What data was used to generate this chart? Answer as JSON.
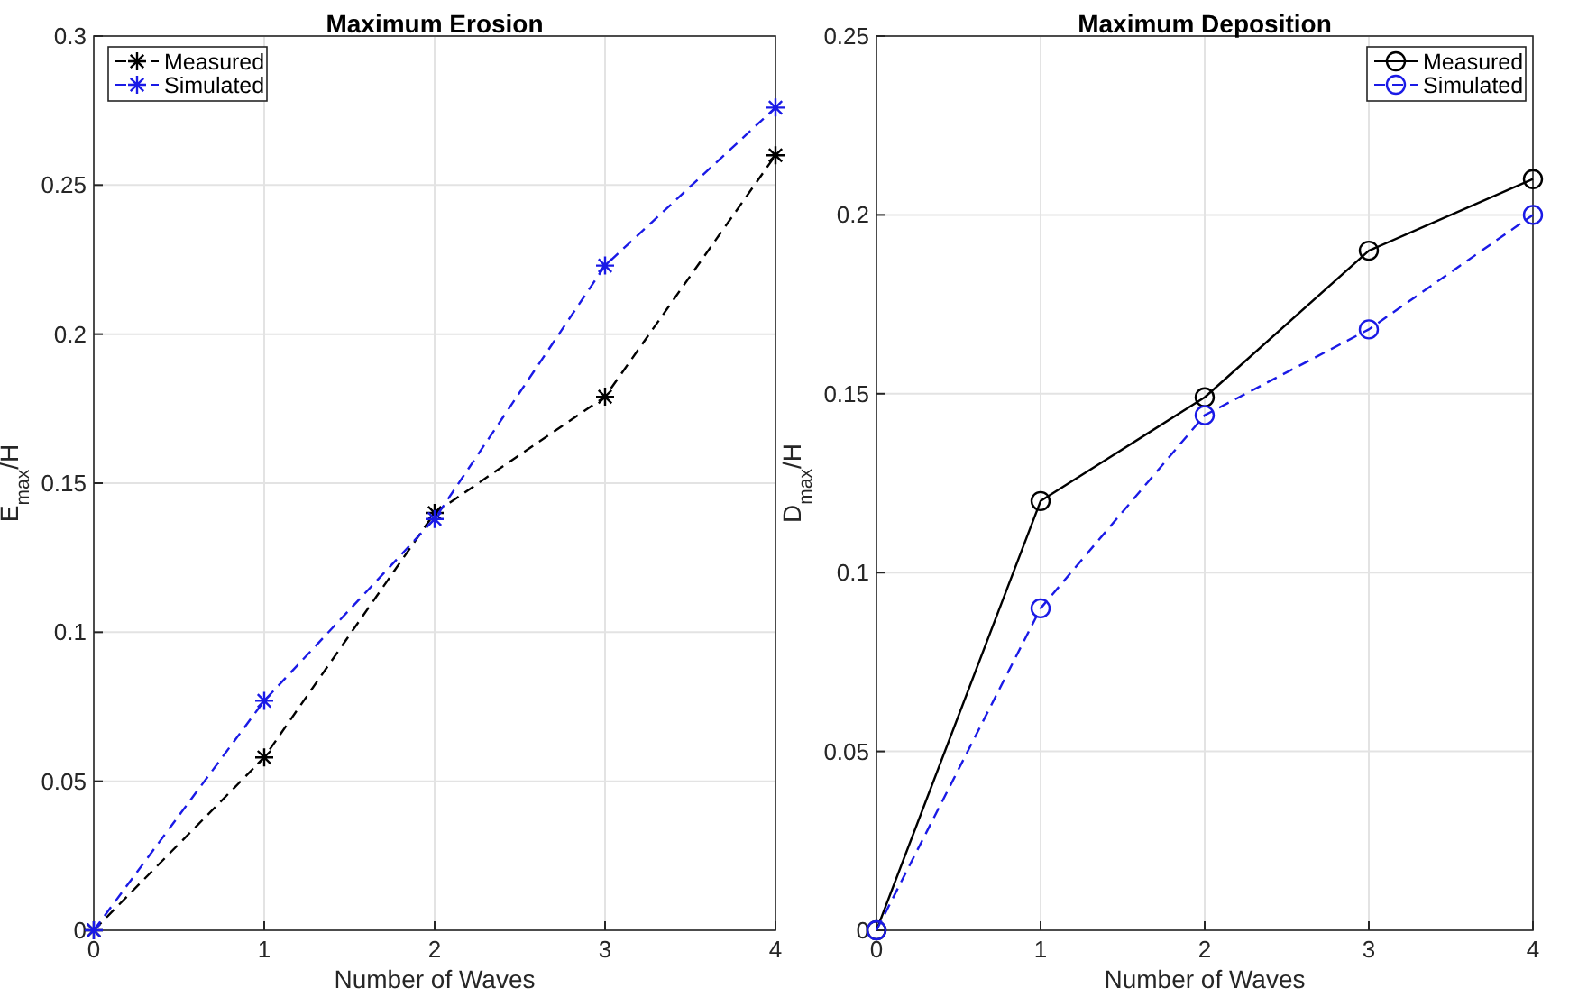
{
  "chart_data": [
    {
      "type": "line",
      "title": "Maximum Erosion",
      "xlabel": "Number of Waves",
      "ylabel": "E$_{max}$/H",
      "x": [
        0,
        1,
        2,
        3,
        4
      ],
      "xlim": [
        0,
        4
      ],
      "xticks": [
        0,
        1,
        2,
        3,
        4
      ],
      "ylim": [
        0,
        0.3
      ],
      "yticks": [
        0,
        0.05,
        0.1,
        0.15,
        0.2,
        0.25,
        0.3
      ],
      "grid": true,
      "legend": "top left",
      "series": [
        {
          "name": "Measured",
          "color": "#000000",
          "marker": "cross",
          "line_style": "dashed",
          "values": [
            0,
            0.058,
            0.14,
            0.179,
            0.26
          ]
        },
        {
          "name": "Simulated",
          "color": "#1a1ae6",
          "marker": "cross",
          "line_style": "dashed",
          "values": [
            0,
            0.077,
            0.138,
            0.223,
            0.276
          ]
        }
      ]
    },
    {
      "type": "line",
      "title": "Maximum Deposition",
      "xlabel": "Number of Waves",
      "ylabel": "D$_{max}$/H",
      "x": [
        0,
        1,
        2,
        3,
        4
      ],
      "xlim": [
        0,
        4
      ],
      "xticks": [
        0,
        1,
        2,
        3,
        4
      ],
      "ylim": [
        0,
        0.25
      ],
      "yticks": [
        0,
        0.05,
        0.1,
        0.15,
        0.2,
        0.25
      ],
      "grid": true,
      "legend": "top right",
      "series": [
        {
          "name": "Measured",
          "color": "#000000",
          "marker": "circle",
          "line_style": "solid",
          "values": [
            0,
            0.12,
            0.149,
            0.19,
            0.21
          ]
        },
        {
          "name": "Simulated",
          "color": "#1a1ae6",
          "marker": "circle",
          "line_style": "dashed",
          "values": [
            0,
            0.09,
            0.144,
            0.168,
            0.2
          ]
        }
      ]
    }
  ]
}
